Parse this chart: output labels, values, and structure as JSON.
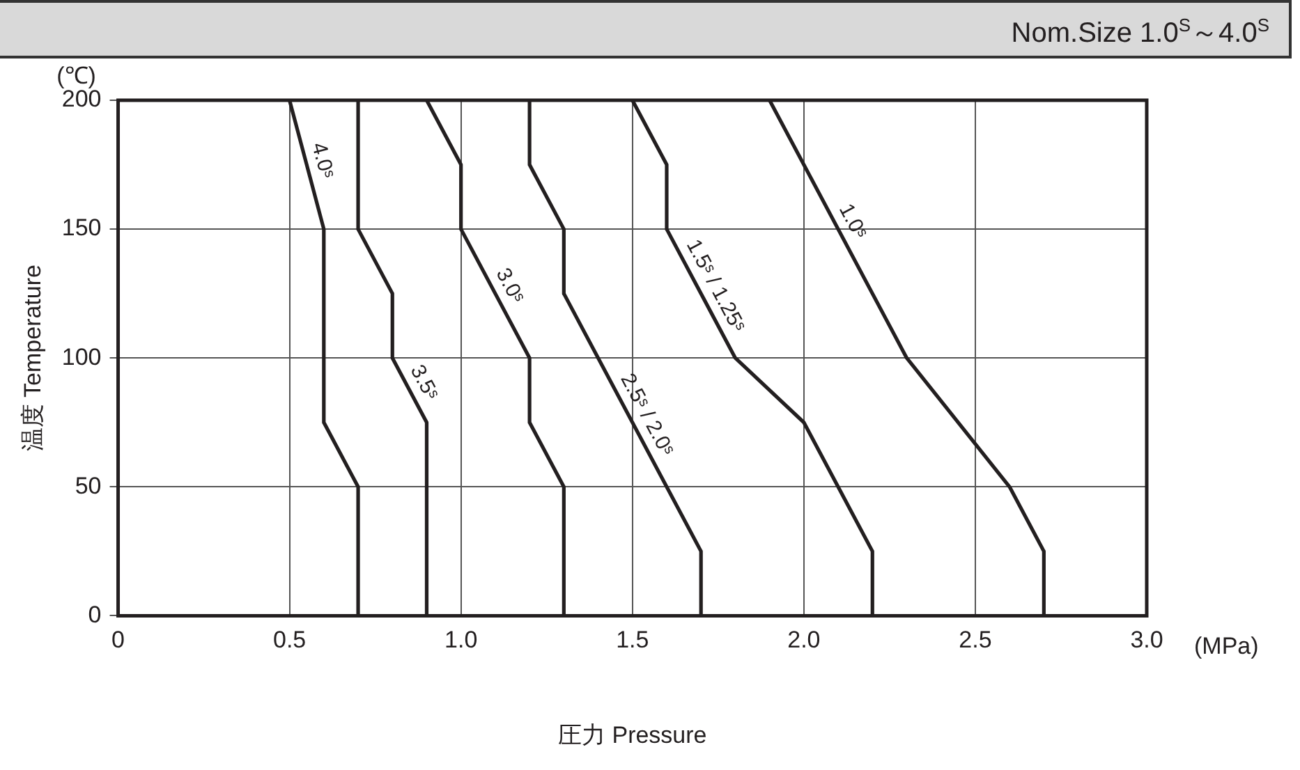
{
  "chart_data": {
    "type": "line",
    "subtitle": "Nom.Size 1.0$^{S}$～4.0$^{S}$",
    "xlabel": "圧力 Pressure",
    "ylabel": "温度 Temperature",
    "annotations": [
      "(℃)",
      "(MPa)"
    ],
    "xlim": [
      0,
      3
    ],
    "xticks": [
      0,
      {
        "value": 0.5,
        "label": "0.5"
      },
      {
        "value": 1,
        "label": "1.0"
      },
      {
        "value": 1.5,
        "label": "1.5"
      },
      {
        "value": 2,
        "label": "2.0"
      },
      {
        "value": 2.5,
        "label": "2.5"
      },
      {
        "value": 3,
        "label": "3.0"
      }
    ],
    "ylim": [
      0,
      200
    ],
    "yticks": [
      0,
      50,
      100,
      150,
      200
    ],
    "grid": true,
    "legend": false,
    "marker": "none",
    "line_style": "solid",
    "series": [
      {
        "name": "4.0ˢ",
        "color": "#231f20",
        "x": [
          0.5,
          0.6,
          0.6,
          0.7,
          0.7
        ],
        "values": [
          200,
          150,
          75,
          50,
          0
        ]
      },
      {
        "name": "3.5ˢ",
        "color": "#231f20",
        "x": [
          0.7,
          0.7,
          0.8,
          0.8,
          0.9,
          0.9
        ],
        "values": [
          200,
          150,
          125,
          100,
          75,
          0
        ]
      },
      {
        "name": "3.0ˢ",
        "color": "#231f20",
        "x": [
          0.9,
          1.0,
          1.0,
          1.2,
          1.2,
          1.3,
          1.3
        ],
        "values": [
          200,
          175,
          150,
          100,
          75,
          50,
          0
        ]
      },
      {
        "name": "2.5ˢ / 2.0ˢ",
        "color": "#231f20",
        "x": [
          1.2,
          1.2,
          1.3,
          1.3,
          1.7,
          1.7
        ],
        "values": [
          200,
          175,
          150,
          125,
          25,
          0
        ]
      },
      {
        "name": "1.5ˢ / 1.25ˢ",
        "color": "#231f20",
        "x": [
          1.5,
          1.6,
          1.6,
          1.8,
          2.0,
          2.2,
          2.2
        ],
        "values": [
          200,
          175,
          150,
          100,
          75,
          25,
          0
        ]
      },
      {
        "name": "1.0ˢ",
        "color": "#231f20",
        "x": [
          1.9,
          2.3,
          2.6,
          2.7,
          2.7
        ],
        "values": [
          200,
          100,
          50,
          25,
          0
        ]
      }
    ]
  }
}
